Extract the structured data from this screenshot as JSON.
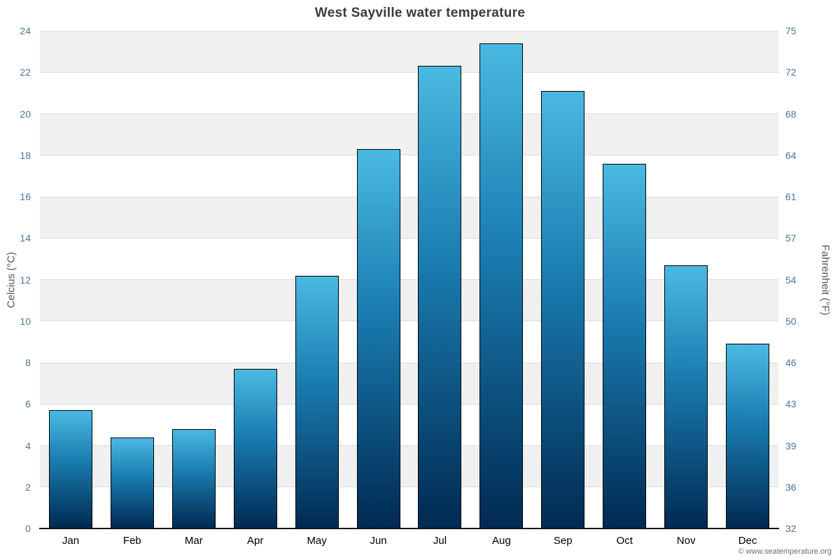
{
  "footer": "© www.seatemperature.org",
  "chart_data": {
    "type": "bar",
    "title": "West Sayville water temperature",
    "categories": [
      "Jan",
      "Feb",
      "Mar",
      "Apr",
      "May",
      "Jun",
      "Jul",
      "Aug",
      "Sep",
      "Oct",
      "Nov",
      "Dec"
    ],
    "values": [
      5.7,
      4.4,
      4.8,
      7.7,
      12.2,
      18.3,
      22.3,
      23.4,
      21.1,
      17.6,
      12.7,
      8.9
    ],
    "ylabel_left": "Celcius (°C)",
    "ylabel_right": "Fahrenheit (°F)",
    "ylim": [
      0,
      24
    ],
    "ytick_step": 2,
    "left_ticks": [
      "0",
      "2",
      "4",
      "6",
      "8",
      "10",
      "12",
      "14",
      "16",
      "18",
      "20",
      "22",
      "24"
    ],
    "right_ticks": [
      "32",
      "36",
      "39",
      "43",
      "46",
      "50",
      "54",
      "57",
      "61",
      "64",
      "68",
      "72",
      "75"
    ],
    "grid": true,
    "legend": "none",
    "bar_color_top": "#4ab9e2",
    "bar_color_mid": "#1a7db1",
    "bar_color_bottom": "#002a52",
    "band_color": "#f0f0f0",
    "band_alt_color": "#ffffff"
  }
}
